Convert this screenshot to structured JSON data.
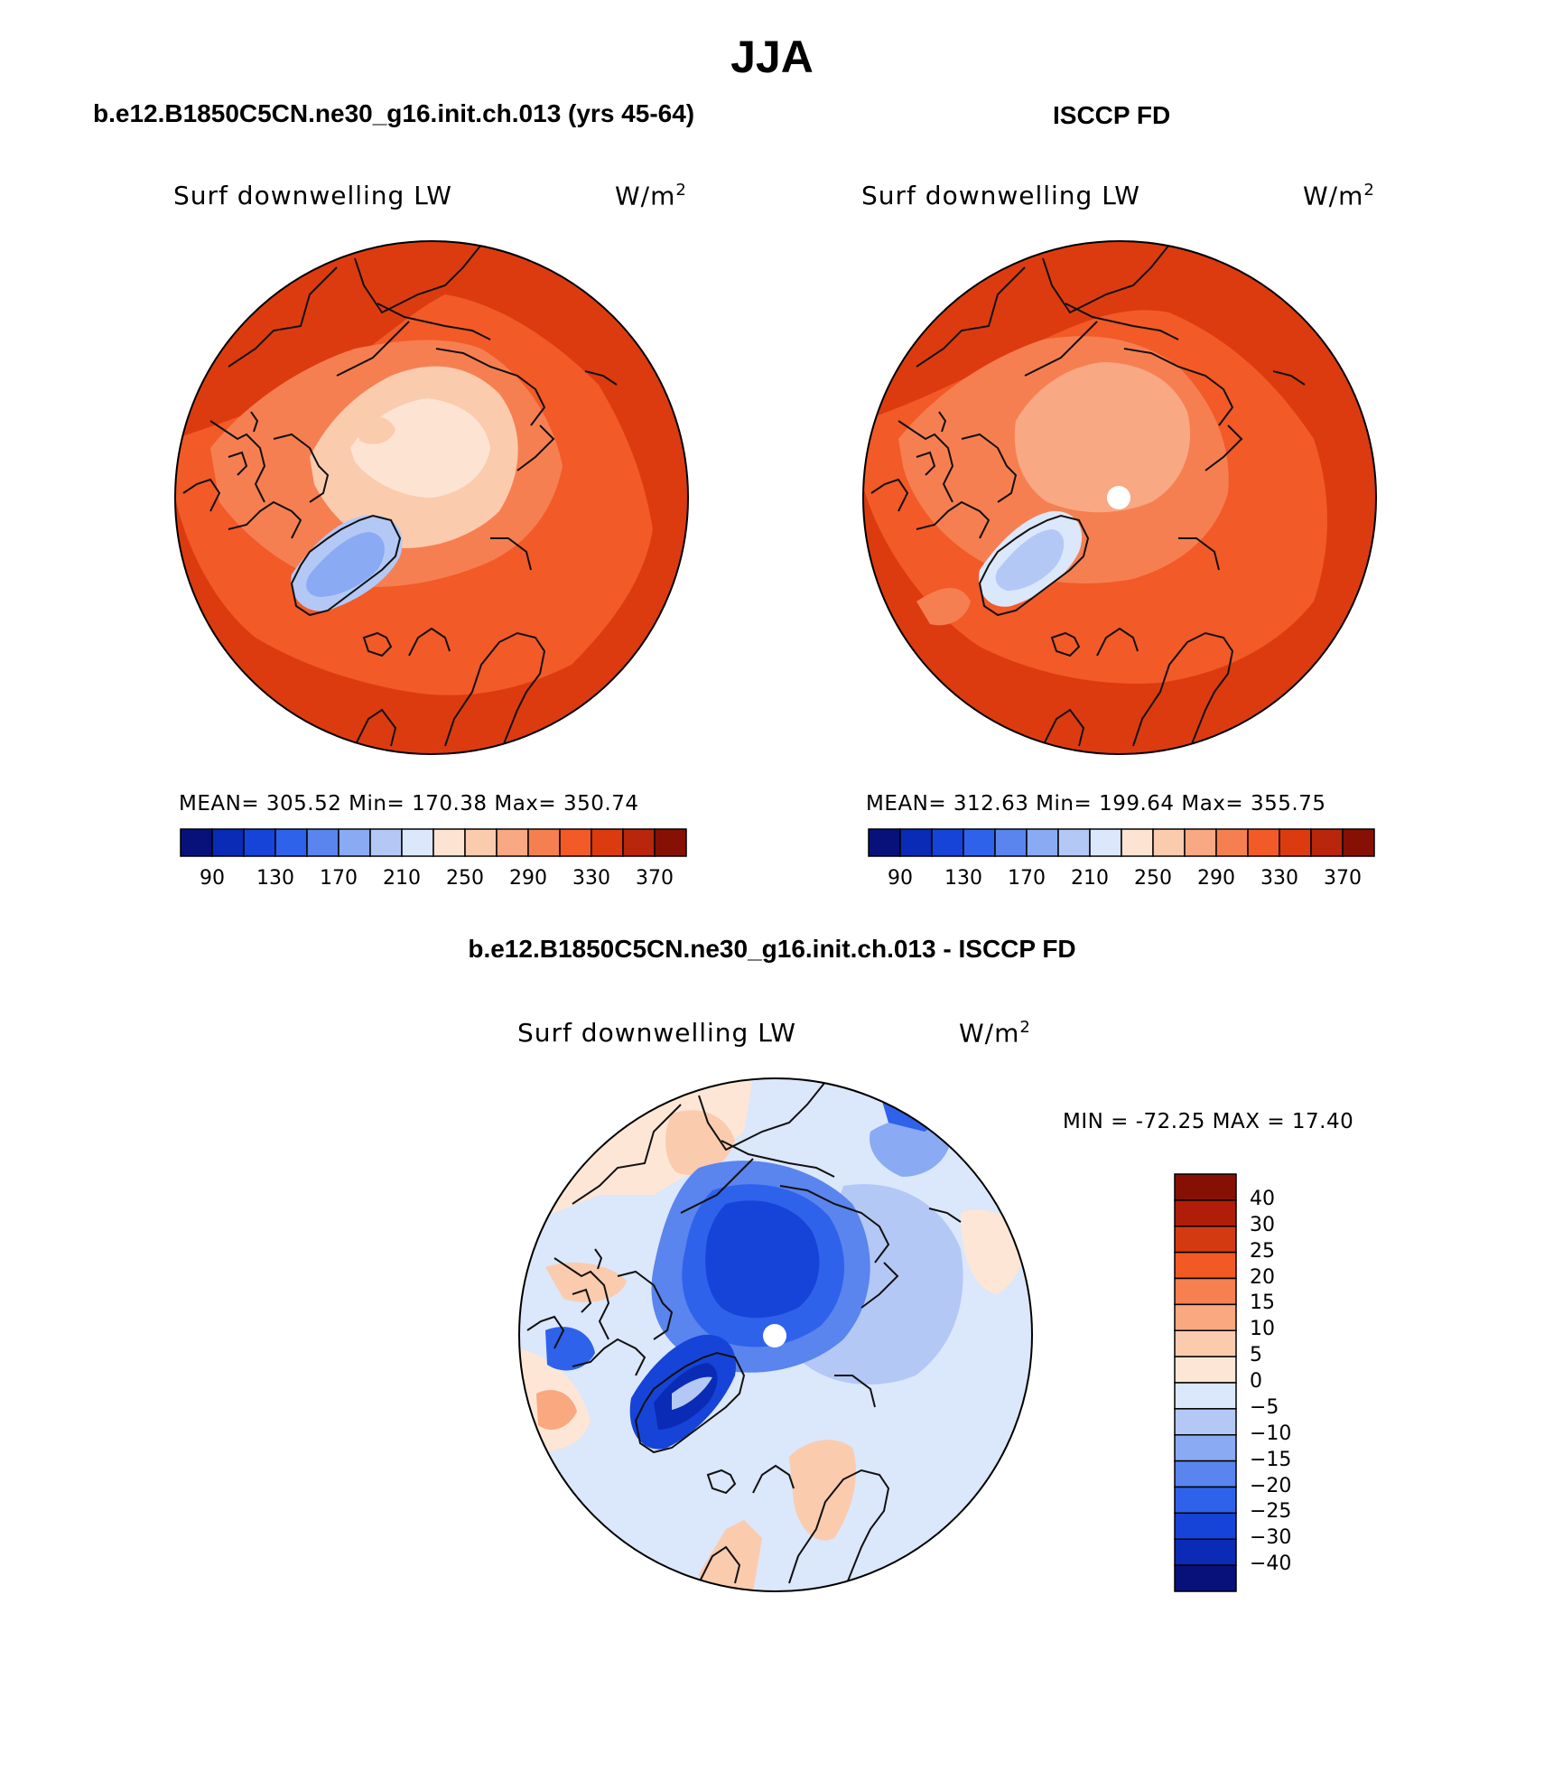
{
  "main_title": "JJA",
  "panels": [
    {
      "title": "b.e12.B1850C5CN.ne30_g16.init.ch.013 (yrs 45-64)",
      "variable": "Surf downwelling LW",
      "units": "W/m",
      "units_sup": "2",
      "stats": "MEAN= 305.52   Min= 170.38   Max= 350.74",
      "colorbar_labels": [
        "90",
        "130",
        "170",
        "210",
        "250",
        "290",
        "330",
        "370"
      ]
    },
    {
      "title": "ISCCP FD",
      "variable": "Surf downwelling LW",
      "units": "W/m",
      "units_sup": "2",
      "stats": "MEAN= 312.63   Min= 199.64   Max= 355.75",
      "colorbar_labels": [
        "90",
        "130",
        "170",
        "210",
        "250",
        "290",
        "330",
        "370"
      ]
    }
  ],
  "diff_panel": {
    "title": "b.e12.B1850C5CN.ne30_g16.init.ch.013 - ISCCP FD",
    "variable": "Surf downwelling LW",
    "units": "W/m",
    "units_sup": "2",
    "stats": "MIN = -72.25 MAX =  17.40",
    "colorbar_labels": [
      "40",
      "30",
      "25",
      "20",
      "15",
      "10",
      "5",
      "0",
      "−5",
      "−10",
      "−15",
      "−20",
      "−25",
      "−30",
      "−40"
    ]
  },
  "colors": {
    "abs_scale": [
      "#08107a",
      "#0a2bb5",
      "#1644d8",
      "#2f62eb",
      "#5a84ee",
      "#8aaaf3",
      "#b4c8f5",
      "#dbe7fa",
      "#fde4d2",
      "#fbcbae",
      "#f8a883",
      "#f67f51",
      "#f25a27",
      "#dc3b10",
      "#b8260c",
      "#861004"
    ],
    "diff_scale": [
      "#861004",
      "#b01d08",
      "#d43a12",
      "#f15a25",
      "#f6804f",
      "#f9a87f",
      "#fbcbae",
      "#fde6d6",
      "#dbe7fa",
      "#b4c8f5",
      "#8aaaf3",
      "#5a84ee",
      "#2f62eb",
      "#1644d8",
      "#0a2bb5",
      "#08107a"
    ]
  }
}
